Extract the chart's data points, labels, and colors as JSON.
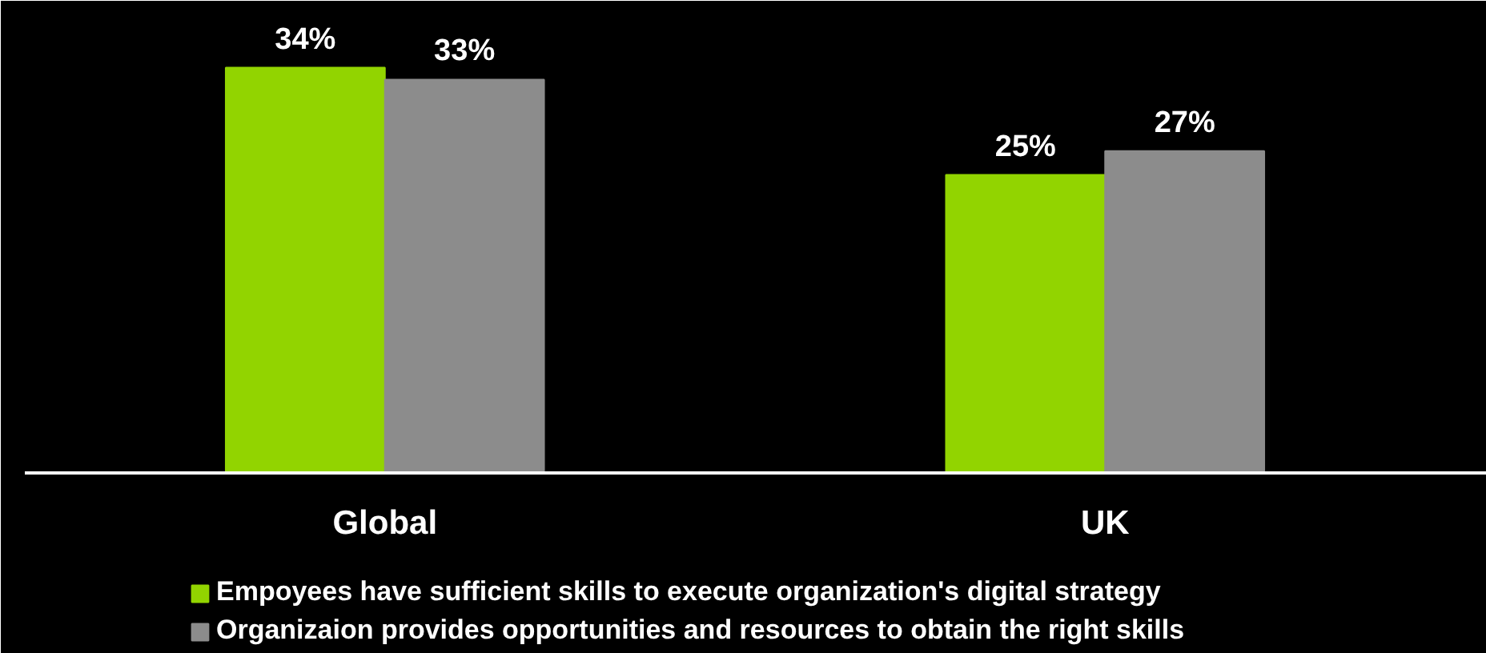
{
  "chart_data": {
    "type": "bar",
    "categories": [
      "Global",
      "UK"
    ],
    "series": [
      {
        "name": "Empoyees have sufficient skills to execute organization's digital strategy",
        "color": "#92d400",
        "values": [
          34,
          25
        ],
        "value_labels": [
          "34%",
          "25%"
        ]
      },
      {
        "name": "Organizaion provides opportunities and resources to obtain the right skills",
        "color": "#8c8c8c",
        "values": [
          33,
          27
        ],
        "value_labels": [
          "33%",
          "27%"
        ]
      }
    ],
    "legend": "bottom"
  }
}
